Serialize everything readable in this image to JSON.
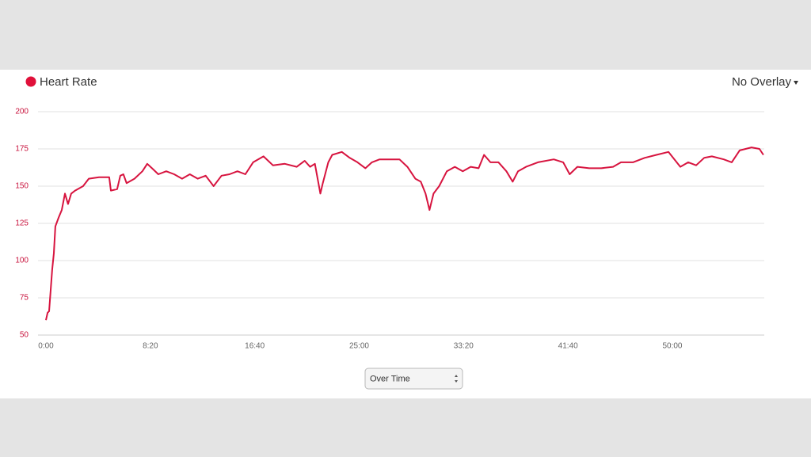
{
  "chart_data": {
    "type": "line",
    "x": [
      0,
      8,
      15,
      23,
      30,
      38,
      45,
      61,
      76,
      91,
      106,
      121,
      140,
      178,
      205,
      254,
      303,
      311,
      341,
      356,
      371,
      386,
      424,
      462,
      485,
      508,
      538,
      576,
      614,
      652,
      689,
      727,
      765,
      803,
      841,
      879,
      917,
      955,
      992,
      1042,
      1087,
      1144,
      1201,
      1239,
      1265,
      1288,
      1314,
      1326,
      1352,
      1371,
      1417,
      1455,
      1492,
      1530,
      1561,
      1598,
      1693,
      1731,
      1769,
      1795,
      1818,
      1837,
      1856,
      1883,
      1920,
      1958,
      1996,
      2034,
      2072,
      2098,
      2129,
      2167,
      2205,
      2235,
      2261,
      2299,
      2356,
      2432,
      2477,
      2508,
      2545,
      2602,
      2659,
      2716,
      2754,
      2811,
      2867,
      2924,
      2981,
      3038,
      3076,
      3114,
      3152,
      3189,
      3246,
      3284,
      3322,
      3379,
      3417,
      3436
    ],
    "series": [
      {
        "name": "Heart Rate",
        "color": "#d7143f",
        "values": [
          60,
          65,
          66,
          81,
          94,
          105,
          123,
          129,
          134,
          145,
          138,
          145,
          147,
          150,
          155,
          156,
          156,
          147,
          148,
          157,
          158,
          152,
          155,
          160,
          165,
          162,
          158,
          160,
          158,
          155,
          158,
          155,
          157,
          150,
          157,
          158,
          160,
          158,
          166,
          170,
          164,
          165,
          163,
          167,
          163,
          165,
          145,
          152,
          166,
          171,
          173,
          169,
          166,
          162,
          166,
          168,
          168,
          163,
          155,
          153,
          145,
          134,
          145,
          150,
          160,
          163,
          160,
          163,
          162,
          171,
          166,
          166,
          160,
          153,
          160,
          163,
          166,
          168,
          166,
          158,
          163,
          162,
          162,
          163,
          166,
          166,
          169,
          171,
          173,
          163,
          166,
          164,
          169,
          170,
          168,
          166,
          174,
          176,
          175,
          171
        ]
      }
    ],
    "xlim": [
      0,
      3440
    ],
    "xticks": [
      {
        "value": 0,
        "label": "0:00"
      },
      {
        "value": 500,
        "label": "8:20"
      },
      {
        "value": 1000,
        "label": "16:40"
      },
      {
        "value": 1500,
        "label": "25:00"
      },
      {
        "value": 2000,
        "label": "33:20"
      },
      {
        "value": 2500,
        "label": "41:40"
      },
      {
        "value": 3000,
        "label": "50:00"
      }
    ],
    "ylim": [
      50,
      200
    ],
    "yticks": [
      50,
      75,
      100,
      125,
      150,
      175,
      200
    ],
    "grid": true
  },
  "controls": {
    "overlay": "No Overlay",
    "mode": "Over Time"
  }
}
